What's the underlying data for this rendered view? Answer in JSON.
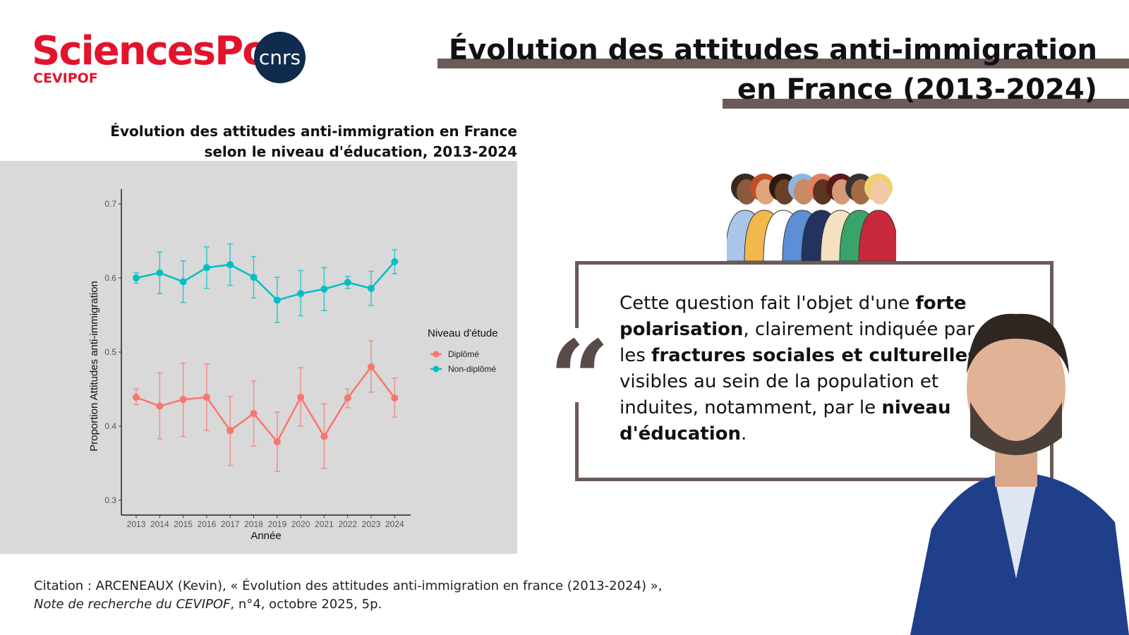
{
  "logos": {
    "sciencespo": "SciencesPo",
    "cevipof": "CEVIPOF",
    "cnrs": "cnrs"
  },
  "header": {
    "title_line1": "Évolution des attitudes anti-immigration",
    "title_line2": "en France (2013-2024)"
  },
  "quote": {
    "parts": [
      {
        "t": "Cette question fait l'objet d'une ",
        "b": false
      },
      {
        "t": "forte polarisation",
        "b": true
      },
      {
        "t": ", clairement indiquée par les ",
        "b": false
      },
      {
        "t": "fractures sociales et culturelles",
        "b": true
      },
      {
        "t": " visibles au sein de la population et induites, notamment, par le ",
        "b": false
      },
      {
        "t": "niveau d'éducation",
        "b": true
      },
      {
        "t": ".",
        "b": false
      }
    ]
  },
  "citation": {
    "line1": "Citation : ARCENEAUX (Kevin), « Évolution des attitudes anti-immigration en france (2013-2024) »,",
    "line2_italic": "Note de recherche du CEVIPOF",
    "line2_rest": ", n°4, octobre 2025, 5p."
  },
  "colors": {
    "accent": "#6b5a58",
    "diplome": "#f8766d",
    "non_diplome": "#00bfc4"
  },
  "chart_data": {
    "type": "line",
    "title": "Évolution des attitudes anti-immigration en France selon le niveau d'éducation, 2013-2024",
    "xlabel": "Année",
    "ylabel": "Proportion Attitudes anti-immigration",
    "x": [
      "2013",
      "2014",
      "2015",
      "2016",
      "2017",
      "2018",
      "2019",
      "2020",
      "2021",
      "2022",
      "2023",
      "2024"
    ],
    "ylim": [
      0.28,
      0.72
    ],
    "yticks": [
      "0.3",
      "0.4",
      "0.5",
      "0.6",
      "0.7"
    ],
    "legend": {
      "title": "Niveau d'étude",
      "position": "right"
    },
    "series": [
      {
        "name": "Diplômé",
        "values": [
          0.439,
          0.427,
          0.436,
          0.439,
          0.394,
          0.417,
          0.379,
          0.439,
          0.386,
          0.438,
          0.48,
          0.438
        ],
        "upper": [
          0.45,
          0.472,
          0.485,
          0.484,
          0.44,
          0.461,
          0.419,
          0.479,
          0.43,
          0.45,
          0.515,
          0.465
        ],
        "lower": [
          0.429,
          0.383,
          0.386,
          0.394,
          0.347,
          0.373,
          0.339,
          0.4,
          0.343,
          0.425,
          0.446,
          0.412
        ]
      },
      {
        "name": "Non-diplômé",
        "values": [
          0.6,
          0.607,
          0.595,
          0.614,
          0.618,
          0.601,
          0.57,
          0.579,
          0.585,
          0.594,
          0.586,
          0.622
        ],
        "upper": [
          0.607,
          0.635,
          0.623,
          0.642,
          0.646,
          0.629,
          0.601,
          0.61,
          0.614,
          0.602,
          0.609,
          0.638
        ],
        "lower": [
          0.593,
          0.579,
          0.567,
          0.586,
          0.59,
          0.573,
          0.54,
          0.549,
          0.556,
          0.586,
          0.563,
          0.606
        ]
      }
    ]
  }
}
